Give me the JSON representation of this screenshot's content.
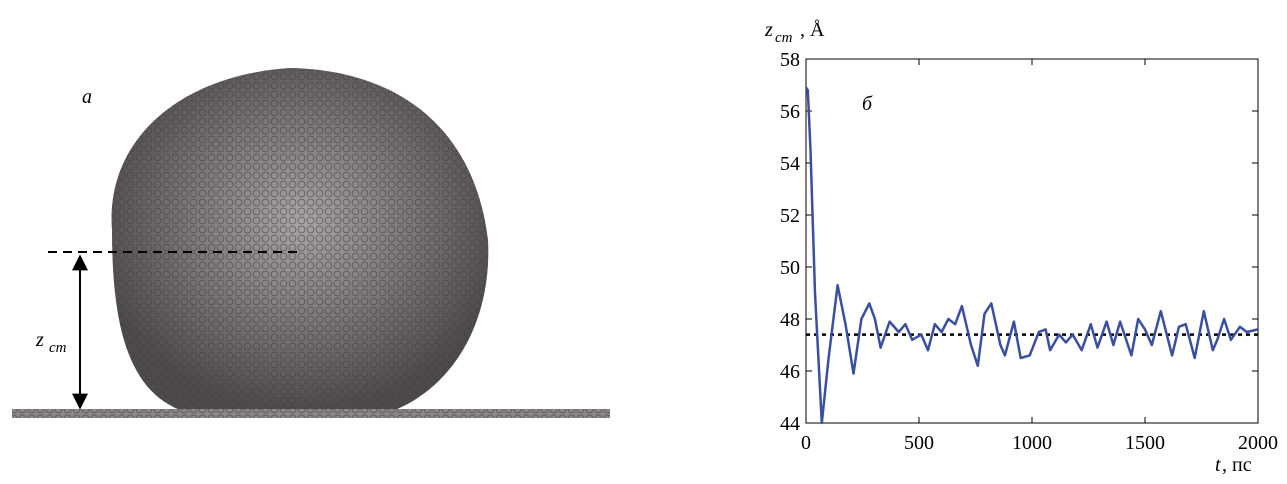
{
  "panel_a": {
    "label": "а",
    "height_symbol": "z",
    "height_subscript": "cm"
  },
  "chart_data": {
    "type": "line",
    "panel_label": "б",
    "y_label": {
      "symbol": "z",
      "subscript": "cm",
      "unit": ", Å"
    },
    "x_label": {
      "symbol": "t",
      "unit": ", пс"
    },
    "x": [
      0,
      8,
      20,
      40,
      70,
      100,
      140,
      175,
      210,
      245,
      280,
      305,
      330,
      370,
      410,
      440,
      470,
      510,
      540,
      570,
      600,
      630,
      660,
      690,
      730,
      760,
      790,
      820,
      860,
      880,
      920,
      950,
      990,
      1030,
      1060,
      1080,
      1120,
      1150,
      1180,
      1220,
      1260,
      1290,
      1330,
      1360,
      1390,
      1440,
      1470,
      1500,
      1530,
      1570,
      1620,
      1650,
      1680,
      1720,
      1760,
      1800,
      1820,
      1850,
      1880,
      1920,
      1950,
      2000
    ],
    "series": [
      {
        "color": "#3a4fa0",
        "values": [
          56.9,
          56.8,
          54.5,
          49.0,
          44.0,
          46.5,
          49.3,
          47.8,
          45.9,
          48.0,
          48.6,
          48.0,
          46.9,
          47.9,
          47.5,
          47.8,
          47.2,
          47.4,
          46.8,
          47.8,
          47.5,
          48.0,
          47.8,
          48.5,
          47.0,
          46.2,
          48.2,
          48.6,
          47.0,
          46.6,
          47.9,
          46.5,
          46.6,
          47.5,
          47.6,
          46.8,
          47.4,
          47.1,
          47.4,
          46.8,
          47.8,
          46.9,
          47.9,
          47.0,
          47.9,
          46.6,
          48.0,
          47.6,
          47.0,
          48.3,
          46.6,
          47.7,
          47.8,
          46.5,
          48.3,
          46.8,
          47.2,
          48.0,
          47.2,
          47.7,
          47.5,
          47.6
        ]
      }
    ],
    "mean": 47.4,
    "mean_color": "#000000",
    "xlim": [
      0,
      2000
    ],
    "xticks": [
      0,
      500,
      1000,
      1500,
      2000
    ],
    "ylim": [
      44,
      58
    ],
    "yticks": [
      44,
      46,
      48,
      50,
      52,
      54,
      56,
      58
    ]
  }
}
